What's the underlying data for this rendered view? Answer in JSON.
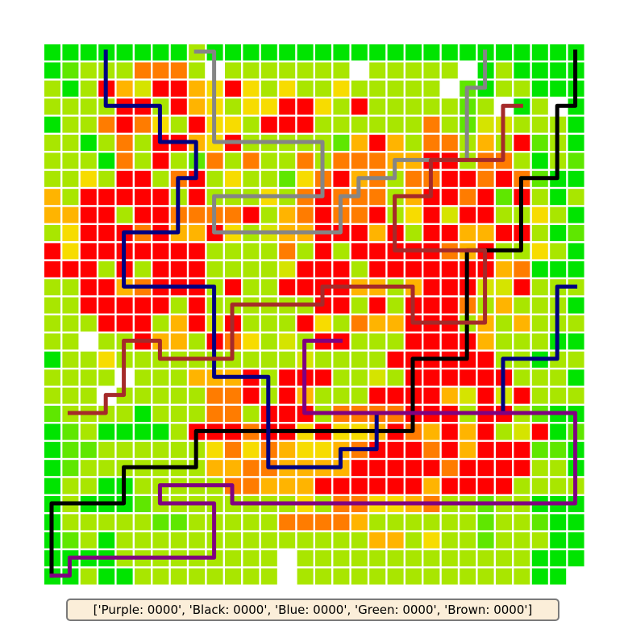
{
  "score_text": "['Purple: 0000', 'Black: 0000', 'Blue: 0000', 'Green: 0000', 'Brown: 0000']",
  "palette": {
    "G": "#00e400",
    "g": "#5fe700",
    "l": "#a9e600",
    "y": "#d5e400",
    "Y": "#f7dc00",
    "o": "#ffb400",
    "O": "#ff7c00",
    "R": "#ff0000",
    ".": "#ffffff"
  },
  "grid": [
    "GGGGGGGGlGGGGGGGGGGGGGGGGGGGGG",
    "GglllOOOl.lllllll.lllll.GlGGGG",
    "lGlRoyRRoYRYlYllYlllll.gGllGGG",
    "llllRRlRoYlYYRRYlRlllllgl.Gl.G",
    "GllOROYlRYYlRRRllllllOlgyylllG",
    "llGlOlRRoYRlllllgoRolOOlolRglG",
    "lllGOlRlgOlOllOlOOOooRRlOOlGlg",
    "llYlRRlORlYllgYORoOlOORROROgGG",
    "olRRRRRlRlllYlOROOOloRRORgRlGl",
    "ooRRlRROOOORloOROORlYRyRRllYlG",
    "lYRRRORooRYlyooRRRoRlRRooRRlGg",
    "RYRRRRRRRllllOlRlRRRRROoRllYlG",
    "RRRlRlRRRllllyRRRlRRRRRRRoOGGG",
    "llRRoORRRlRllRRRRooloRRRyyRlll",
    "llRRRRRlRllllllRRlRlRRROlolllG",
    "lllRRRloRyRlllRYlOooRRRlololll",
    "ll.llRoolROYlylRRlllRRRRolllGG",
    "GllYllllllllllyllllRRRRRRllGll",
    "llll.llloooRlRRRllylRRRRRRlllG",
    "lll.lllllOORlRolllRRRRoyRyRlll",
    "gllllGlllOOlRRRlOOOORRRlRRlgGG",
    "GglGGGGlRRRORRYRYYoROoRoRlyRGg",
    "GggllllllYOYOoYYoORRRORoRRRggG",
    "GglllllllooOOooooRRRRRORRRRllG",
    "GllGGlllllOOoooRRRRRRoRRRRllll",
    "GlGGGgllllllllYlOOYYoOllgllGGG",
    "GlllllgglllllOOOOollllllgllgGG",
    "GglGlllllllllllllloolYllglllGG",
    "GGGGlllllllll.lllllllllllllGGG",
    "GGlGGllllllll.lllllllllllllGG."
  ],
  "paths": [
    {
      "name": "Gray",
      "color": "#858585",
      "points": [
        [
          8.4,
          0.4
        ],
        [
          9.4,
          0.4
        ],
        [
          9.4,
          5.4
        ],
        [
          15.4,
          5.4
        ],
        [
          15.4,
          8.4
        ],
        [
          9.4,
          8.4
        ],
        [
          9.4,
          10.4
        ],
        [
          16.4,
          10.4
        ],
        [
          16.4,
          8.4
        ],
        [
          17.4,
          8.4
        ],
        [
          17.4,
          7.4
        ],
        [
          19.4,
          7.4
        ],
        [
          19.4,
          6.4
        ],
        [
          23.4,
          6.4
        ],
        [
          23.4,
          2.4
        ],
        [
          24.4,
          2.4
        ],
        [
          24.4,
          0.4
        ]
      ]
    },
    {
      "name": "Black",
      "color": "#000000",
      "points": [
        [
          29.4,
          0.4
        ],
        [
          29.4,
          3.4
        ],
        [
          28.4,
          3.4
        ],
        [
          28.4,
          7.4
        ],
        [
          26.4,
          7.4
        ],
        [
          26.4,
          11.4
        ],
        [
          23.4,
          11.4
        ],
        [
          23.4,
          17.4
        ],
        [
          20.4,
          17.4
        ],
        [
          20.4,
          21.4
        ],
        [
          8.4,
          21.4
        ],
        [
          8.4,
          23.4
        ],
        [
          4.4,
          23.4
        ],
        [
          4.4,
          25.4
        ],
        [
          0.4,
          25.4
        ],
        [
          0.4,
          29.4
        ]
      ]
    },
    {
      "name": "Blue",
      "color": "#000080",
      "points": [
        [
          3.4,
          0.4
        ],
        [
          3.4,
          3.4
        ],
        [
          6.4,
          3.4
        ],
        [
          6.4,
          5.4
        ],
        [
          8.4,
          5.4
        ],
        [
          8.4,
          7.4
        ],
        [
          7.4,
          7.4
        ],
        [
          7.4,
          10.4
        ],
        [
          4.4,
          10.4
        ],
        [
          4.4,
          13.4
        ],
        [
          9.4,
          13.4
        ],
        [
          9.4,
          18.4
        ],
        [
          12.4,
          18.4
        ],
        [
          12.4,
          23.4
        ],
        [
          16.4,
          23.4
        ],
        [
          16.4,
          22.4
        ],
        [
          18.4,
          22.4
        ],
        [
          18.4,
          20.4
        ],
        [
          25.4,
          20.4
        ],
        [
          25.4,
          17.4
        ],
        [
          28.4,
          17.4
        ],
        [
          28.4,
          13.4
        ],
        [
          29.4,
          13.4
        ]
      ]
    },
    {
      "name": "Brown",
      "color": "#a52a2a",
      "points": [
        [
          26.4,
          3.4
        ],
        [
          25.4,
          3.4
        ],
        [
          25.4,
          6.4
        ],
        [
          21.4,
          6.4
        ],
        [
          21.4,
          8.4
        ],
        [
          19.4,
          8.4
        ],
        [
          19.4,
          11.4
        ],
        [
          24.4,
          11.4
        ],
        [
          24.4,
          15.4
        ],
        [
          20.4,
          15.4
        ],
        [
          20.4,
          13.4
        ],
        [
          15.4,
          13.4
        ],
        [
          15.4,
          14.4
        ],
        [
          10.4,
          14.4
        ],
        [
          10.4,
          17.4
        ],
        [
          6.4,
          17.4
        ],
        [
          6.4,
          16.4
        ],
        [
          4.4,
          16.4
        ],
        [
          4.4,
          19.4
        ],
        [
          3.4,
          19.4
        ],
        [
          3.4,
          20.4
        ],
        [
          1.4,
          20.4
        ]
      ]
    },
    {
      "name": "Purple",
      "color": "#800080",
      "points": [
        [
          16.4,
          16.4
        ],
        [
          14.4,
          16.4
        ],
        [
          14.4,
          20.4
        ],
        [
          29.4,
          20.4
        ],
        [
          29.4,
          25.4
        ],
        [
          10.4,
          25.4
        ],
        [
          10.4,
          24.4
        ],
        [
          6.4,
          24.4
        ],
        [
          6.4,
          25.4
        ],
        [
          9.4,
          25.4
        ],
        [
          9.4,
          28.4
        ],
        [
          1.4,
          28.4
        ],
        [
          1.4,
          29.4
        ],
        [
          0.4,
          29.4
        ]
      ]
    }
  ]
}
